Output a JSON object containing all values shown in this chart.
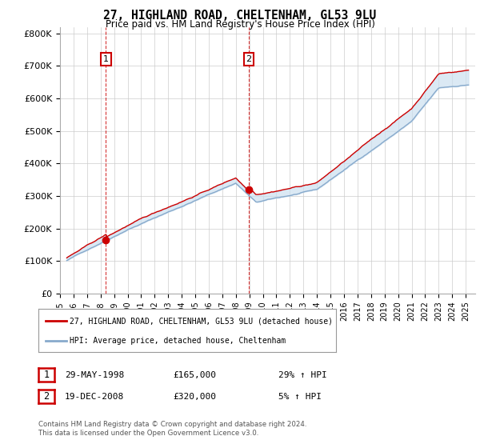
{
  "title": "27, HIGHLAND ROAD, CHELTENHAM, GL53 9LU",
  "subtitle": "Price paid vs. HM Land Registry's House Price Index (HPI)",
  "ylabel_ticks": [
    "£0",
    "£100K",
    "£200K",
    "£300K",
    "£400K",
    "£500K",
    "£600K",
    "£700K",
    "£800K"
  ],
  "ytick_vals": [
    0,
    100000,
    200000,
    300000,
    400000,
    500000,
    600000,
    700000,
    800000
  ],
  "ylim": [
    0,
    820000
  ],
  "xlim_start": 1995.3,
  "xlim_end": 2025.7,
  "xticks": [
    1995,
    1996,
    1997,
    1998,
    1999,
    2000,
    2001,
    2002,
    2003,
    2004,
    2005,
    2006,
    2007,
    2008,
    2009,
    2010,
    2011,
    2012,
    2013,
    2014,
    2015,
    2016,
    2017,
    2018,
    2019,
    2020,
    2021,
    2022,
    2023,
    2024,
    2025
  ],
  "sale1_x": 1998.4,
  "sale1_y": 165000,
  "sale2_x": 2008.96,
  "sale2_y": 320000,
  "house_color": "#cc0000",
  "hpi_color": "#88aacc",
  "fill_color": "#cce0f0",
  "annotation_box_color": "#cc0000",
  "background_color": "#ffffff",
  "grid_color": "#cccccc",
  "legend_label_house": "27, HIGHLAND ROAD, CHELTENHAM, GL53 9LU (detached house)",
  "legend_label_hpi": "HPI: Average price, detached house, Cheltenham",
  "table_row1": [
    "1",
    "29-MAY-1998",
    "£165,000",
    "29% ↑ HPI"
  ],
  "table_row2": [
    "2",
    "19-DEC-2008",
    "£320,000",
    "5% ↑ HPI"
  ],
  "footer": "Contains HM Land Registry data © Crown copyright and database right 2024.\nThis data is licensed under the Open Government Licence v3.0."
}
